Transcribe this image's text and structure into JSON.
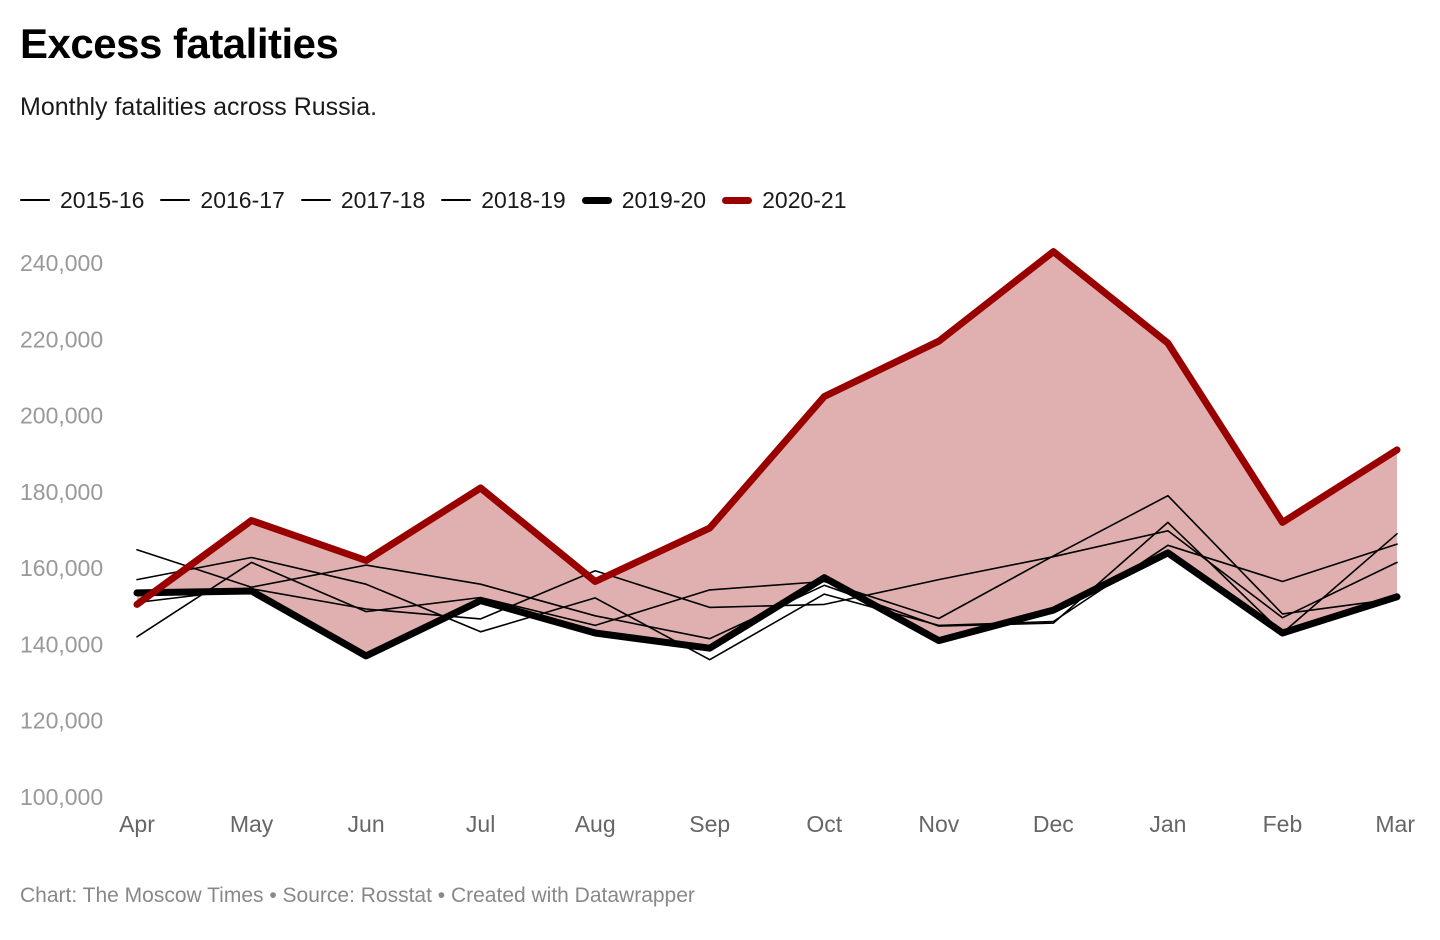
{
  "header": {
    "title": "Excess fatalities",
    "subtitle": "Monthly fatalities across Russia."
  },
  "footer": {
    "credit": "Chart: The Moscow Times • Source: Rosstat • Created with Datawrapper"
  },
  "colors": {
    "baseline": "#000000",
    "highlight": "#990000",
    "fill": "#e0b0b0",
    "axis_text": "#999999"
  },
  "chart_data": {
    "type": "line",
    "title": "Excess fatalities",
    "subtitle": "Monthly fatalities across Russia.",
    "xlabel": "",
    "ylabel": "",
    "categories": [
      "Apr",
      "May",
      "Jun",
      "Jul",
      "Aug",
      "Sep",
      "Oct",
      "Nov",
      "Dec",
      "Jan",
      "Feb",
      "Mar"
    ],
    "ylim": [
      100000,
      240000
    ],
    "yticks": [
      100000,
      120000,
      140000,
      160000,
      180000,
      200000,
      220000,
      240000
    ],
    "ytick_labels": [
      "100,000",
      "120,000",
      "140,000",
      "160,000",
      "180,000",
      "200,000",
      "220,000",
      "240,000"
    ],
    "grid": false,
    "legend_position": "top-left",
    "shaded_area": "between 2019-20 and 2020-21",
    "series": [
      {
        "name": "2015-16",
        "style": "thin",
        "color": "#000000",
        "values": [
          164800,
          155000,
          160800,
          155800,
          147500,
          141500,
          155500,
          144800,
          145600,
          172000,
          143000,
          169000
        ]
      },
      {
        "name": "2016-17",
        "style": "thin",
        "color": "#000000",
        "values": [
          157000,
          162800,
          155800,
          143300,
          152200,
          136000,
          153200,
          145000,
          146000,
          166000,
          156500,
          166300
        ]
      },
      {
        "name": "2017-18",
        "style": "thin",
        "color": "#000000",
        "values": [
          142000,
          161500,
          148600,
          152300,
          145000,
          154300,
          156500,
          146800,
          163200,
          179000,
          148000,
          152000
        ]
      },
      {
        "name": "2018-19",
        "style": "thin",
        "color": "#000000",
        "values": [
          151000,
          154600,
          149300,
          146700,
          159300,
          149700,
          150500,
          157000,
          163000,
          169800,
          147000,
          161500
        ]
      },
      {
        "name": "2019-20",
        "style": "thick",
        "color": "#000000",
        "values": [
          153500,
          154000,
          137000,
          151500,
          143000,
          139000,
          157500,
          141000,
          149000,
          164000,
          143000,
          152500
        ]
      },
      {
        "name": "2020-21",
        "style": "thick",
        "color": "#990000",
        "values": [
          150500,
          172500,
          162000,
          181000,
          156500,
          170500,
          205000,
          219500,
          243000,
          219000,
          172000,
          191000
        ]
      }
    ]
  }
}
